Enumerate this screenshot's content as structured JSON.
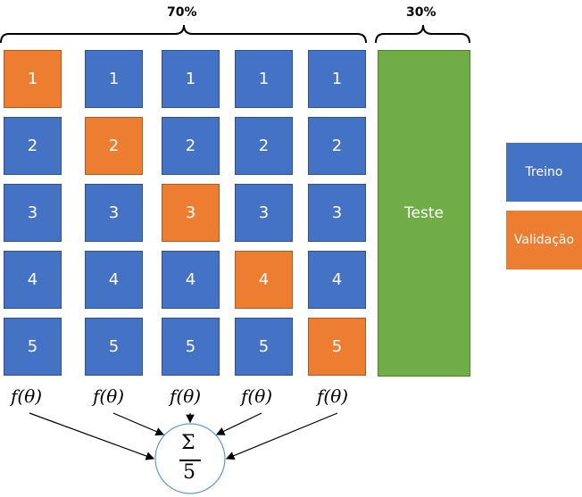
{
  "brackets": {
    "train_percent": "70%",
    "test_percent": "30%"
  },
  "folds": [
    {
      "cells": [
        "1",
        "2",
        "3",
        "4",
        "5"
      ],
      "validation_index": 0
    },
    {
      "cells": [
        "1",
        "2",
        "3",
        "4",
        "5"
      ],
      "validation_index": 1
    },
    {
      "cells": [
        "1",
        "2",
        "3",
        "4",
        "5"
      ],
      "validation_index": 2
    },
    {
      "cells": [
        "1",
        "2",
        "3",
        "4",
        "5"
      ],
      "validation_index": 3
    },
    {
      "cells": [
        "1",
        "2",
        "3",
        "4",
        "5"
      ],
      "validation_index": 4
    }
  ],
  "test_label": "Teste",
  "legend": {
    "train": "Treino",
    "validation": "Validação"
  },
  "fold_output_label": "f(θ)",
  "aggregation": {
    "numerator": "Σ",
    "denominator": "5"
  },
  "colors": {
    "train": "#4472c4",
    "validation": "#ed7d31",
    "test": "#70ad47"
  }
}
